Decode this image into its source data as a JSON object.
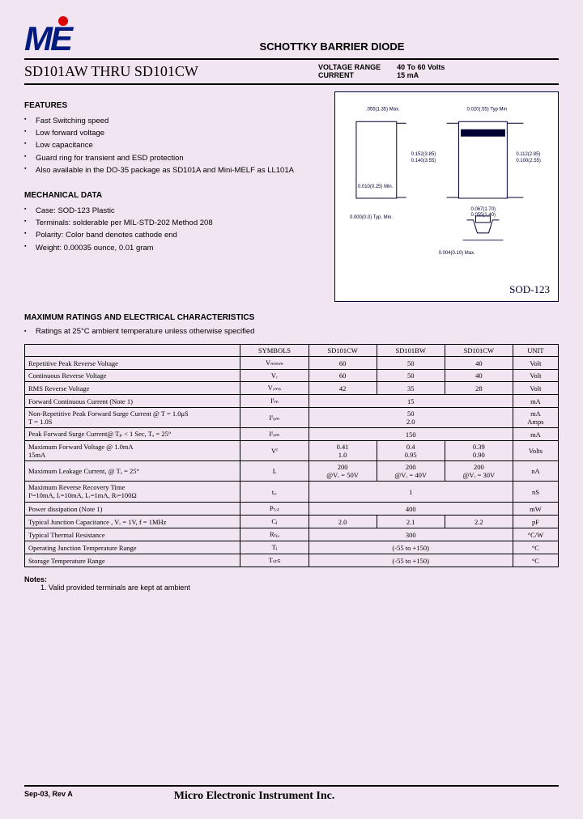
{
  "doc_title": "SCHOTTKY BARRIER DIODE",
  "part_range": "SD101AW THRU SD101CW",
  "spec": {
    "voltage_label": "VOLTAGE RANGE",
    "current_label": "CURRENT",
    "voltage_value": "40  To  60 Volts",
    "current_value": "15   mA"
  },
  "features": {
    "heading": "FEATURES",
    "items": [
      "Fast Switching speed",
      "Low forward voltage",
      "Low capacitance",
      "Guard ring for transient and ESD protection",
      "Also available in the DO-35 package as SD101A and Mini-MELF as LL101A"
    ]
  },
  "mechanical": {
    "heading": "MECHANICAL DATA",
    "items": [
      "Case:  SOD-123 Plastic",
      "Terminals:  solderable per MIL-STD-202 Method 208",
      "Polarity:  Color band denotes cathode end",
      "Weight:  0.00035 ounce, 0.01 gram"
    ]
  },
  "package_label": "SOD-123",
  "package_dims": {
    "d1": ".055(1.35) Max.",
    "d2": "0.020(.55) Typ Min",
    "d3": "0.152(3.85)",
    "d4": "0.140(3.55)",
    "d5": "0.112(2.85)",
    "d6": "0.100(2.55)",
    "d7": "0.010(0.25) Min.",
    "d8": "0.000(0.0) Typ. Min.",
    "d9": "0.067(1.70)",
    "d10": "0.055(1.40)",
    "d11": "0.004(0.10) Max."
  },
  "ratings": {
    "heading": "MAXIMUM RATINGS AND ELECTRICAL CHARACTERISTICS",
    "note_line": "Ratings at 25°C ambient temperature unless otherwise specified"
  },
  "table": {
    "head": {
      "symbols": "SYMBOLS",
      "c1": "SD101CW",
      "c2": "SD101BW",
      "c3": "SD101CW",
      "unit": "UNIT"
    },
    "rows": [
      {
        "param": "Repetitive Peak Reverse Voltage",
        "sym": "Vₘₘₘ",
        "v": [
          "60",
          "50",
          "40"
        ],
        "unit": "Volt"
      },
      {
        "param": "Continuous Reverse Voltage",
        "sym": "Vᵣ",
        "v": [
          "60",
          "50",
          "40"
        ],
        "unit": "Volt"
      },
      {
        "param": "RMS Reverse Voltage",
        "sym": "Vᵣₘₛ",
        "v": [
          "42",
          "35",
          "28"
        ],
        "unit": "Volt"
      },
      {
        "param": "Forward Continuous Current (Note 1)",
        "sym": "Iᶠₘ",
        "span": "15",
        "unit": "mA"
      },
      {
        "param": "Non-Repetitive Peak Forward Surge Current @ T = 1.0μS\nT = 1.0S",
        "sym": "Iᶠₛₘ",
        "span": "50\n2.0",
        "unit": "mA\nAmps"
      },
      {
        "param": "Peak Forward Surge Current@ Tₚ < 1 Sec, Tₐ = 25°",
        "sym": "Iᶠₛₘ",
        "span": "150",
        "unit": "mA"
      },
      {
        "param": "Maximum Forward Voltage @ 1.0mA\n15mA",
        "sym": "Vᶠ",
        "v": [
          "0.41\n1.0",
          "0.4\n0.95",
          "0.39\n0.90"
        ],
        "unit": "Volts"
      },
      {
        "param": "Maximum Leakage Current, @ Tₐ = 25°",
        "sym": "Iᵣ",
        "v": [
          "200\n@Vᵣ = 50V",
          "200\n@Vᵣ = 40V",
          "200\n@Vᵣ = 30V"
        ],
        "unit": "nA"
      },
      {
        "param": "Maximum Reverse Recovery Time\nIᶠ=10mA, Iᵣ=10mA, Iᵣᵣ=1mA, Rₗ=100Ω",
        "sym": "tᵣᵣ",
        "span": "1",
        "unit": "nS"
      },
      {
        "param": "Power dissipation (Note 1)",
        "sym": "Pₜₒₜ",
        "span": "400",
        "unit": "mW"
      },
      {
        "param": "Typical Junction Capacitance , Vᵣ = 1V, f = 1MHz",
        "sym": "Cⱼ",
        "v": [
          "2.0",
          "2.1",
          "2.2"
        ],
        "unit": "pF"
      },
      {
        "param": "Typical Thermal Resistance",
        "sym": "Rₜⱼₐ",
        "span": "300",
        "unit": "°C/W"
      },
      {
        "param": "Operating Junction Temperature Range",
        "sym": "Tⱼ",
        "span": "(-55 to +150)",
        "unit": "°C"
      },
      {
        "param": "Storage Temperature Range",
        "sym": "Tₛₜɢ",
        "span": "(-55 to +150)",
        "unit": "°C"
      }
    ]
  },
  "notes": {
    "heading": "Notes:",
    "n1": "1.    Valid provided terminals are kept at ambient"
  },
  "footer": {
    "rev": "Sep-03, Rev A",
    "company": "Micro Electronic Instrument Inc."
  }
}
